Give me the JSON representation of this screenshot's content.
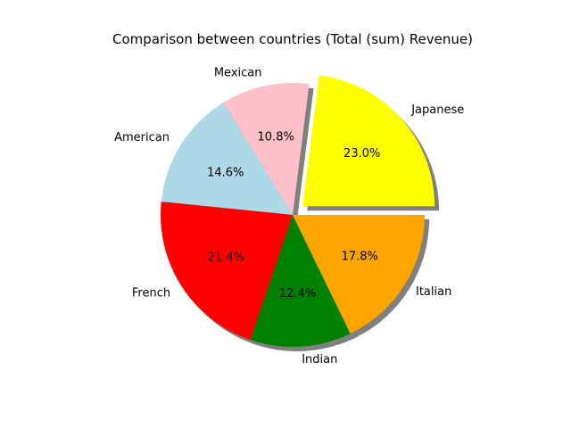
{
  "chart_data": {
    "type": "pie",
    "title": "Comparison between countries (Total (sum) Revenue)",
    "labels": [
      "Japanese",
      "Mexican",
      "American",
      "French",
      "Indian",
      "Italian"
    ],
    "values": [
      23.0,
      10.8,
      14.6,
      21.4,
      12.4,
      17.8
    ],
    "percent_labels": [
      "23.0%",
      "10.8%",
      "14.6%",
      "21.4%",
      "12.4%",
      "17.8%"
    ],
    "colors": [
      "#ffff00",
      "#ffc0cb",
      "#add8e6",
      "#ff0000",
      "#008000",
      "#ffa500"
    ],
    "exploded": "Japanese",
    "shadow": true,
    "direction": "counterclockwise"
  }
}
